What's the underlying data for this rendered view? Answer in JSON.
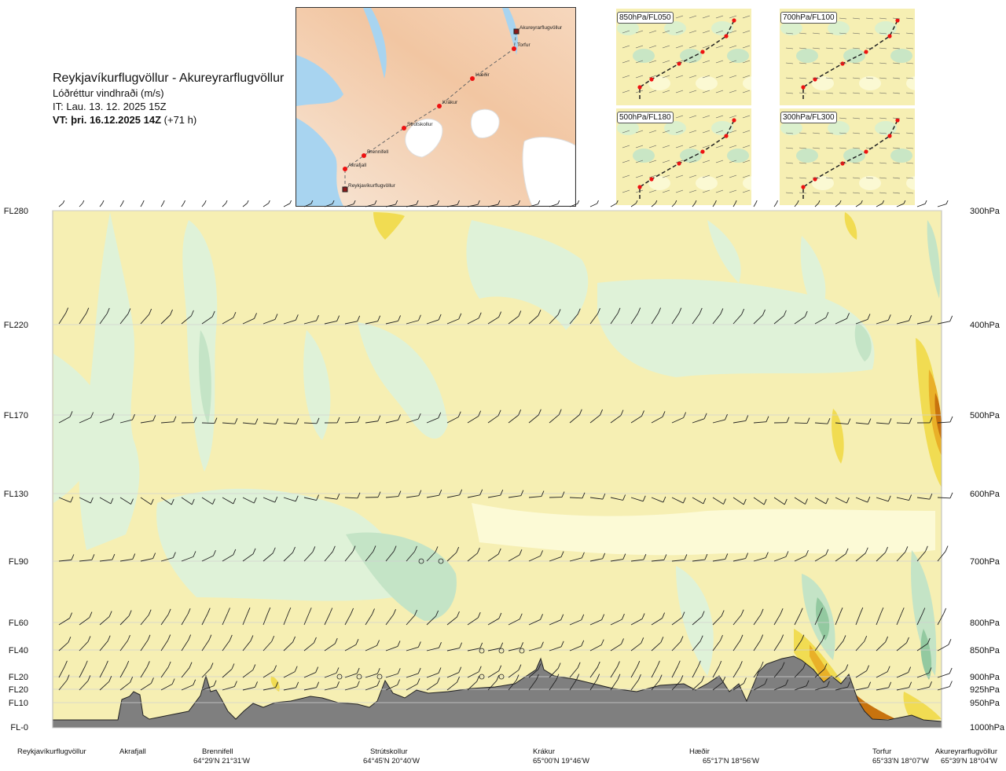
{
  "header": {
    "route_title": "Reykjavíkurflugvöllur - Akureyrarflugvöllur",
    "parameter": "Lóðréttur vindhraði (m/s)",
    "issue_time": "IT: Lau. 13. 12. 2025 15Z",
    "valid_time_bold": "VT: þri. 16.12.2025 14Z",
    "valid_time_offset": "(+71 h)"
  },
  "route_map": {
    "points": [
      {
        "name": "Akureyrarflugvöllur",
        "kind": "airport"
      },
      {
        "name": "Torfur",
        "kind": "waypoint"
      },
      {
        "name": "Hæðir",
        "kind": "waypoint"
      },
      {
        "name": "Krákur",
        "kind": "waypoint"
      },
      {
        "name": "Strútskollur",
        "kind": "waypoint"
      },
      {
        "name": "Brennifell",
        "kind": "waypoint"
      },
      {
        "name": "Akrafjall",
        "kind": "waypoint"
      },
      {
        "name": "Reykjavíkurflugvöllur",
        "kind": "airport"
      }
    ]
  },
  "level_maps": [
    {
      "label": "850hPa/FL050"
    },
    {
      "label": "700hPa/FL100"
    },
    {
      "label": "500hPa/FL180"
    },
    {
      "label": "300hPa/FL300"
    }
  ],
  "chart_data": {
    "type": "heatmap",
    "title": "Lóðréttur vindhraði (m/s)",
    "y_axis_left_flight_levels": [
      "FL280",
      "FL220",
      "FL170",
      "FL130",
      "FL90",
      "FL60",
      "FL40",
      "FL20",
      "FL20",
      "FL10",
      "FL-0"
    ],
    "y_axis_right_pressure": [
      "300hPa",
      "400hPa",
      "500hPa",
      "600hPa",
      "700hPa",
      "800hPa",
      "850hPa",
      "900hPa",
      "925hPa",
      "950hPa",
      "1000hPa"
    ],
    "pressure_levels_hpa": [
      300,
      400,
      500,
      600,
      700,
      800,
      850,
      900,
      925,
      950,
      1000
    ],
    "x_waypoints": [
      {
        "name": "Reykjavíkurflugvöllur",
        "coord": ""
      },
      {
        "name": "Akrafjall",
        "coord": ""
      },
      {
        "name": "Brennifell",
        "coord": "64°29'N 21°31'W"
      },
      {
        "name": "Strútskollur",
        "coord": "64°45'N 20°40'W"
      },
      {
        "name": "Krákur",
        "coord": "65°00'N 19°46'W"
      },
      {
        "name": "Hæðir",
        "coord": "65°17'N 18°56'W"
      },
      {
        "name": "Torfur",
        "coord": "65°33'N 18°07'W"
      },
      {
        "name": "Akureyrarflugvöllur",
        "coord": "65°39'N 18°04'W"
      }
    ],
    "colors": {
      "downdraft_weak": "#dff2d8",
      "downdraft_moderate": "#c4e4c6",
      "downdraft_strong": "#93c9a0",
      "near_zero_down": "#eefbe8",
      "near_zero_up": "#fcfad6",
      "updraft_weak": "#f6efb3",
      "updraft_moderate": "#f1dc52",
      "updraft_strong": "#e9b028",
      "updraft_extreme": "#c8730e",
      "terrain": "#7f7f7f"
    },
    "grid": true
  }
}
